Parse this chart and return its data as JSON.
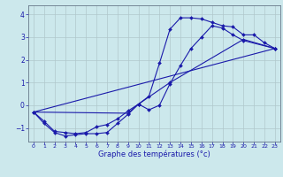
{
  "xlabel": "Graphe des températures (°c)",
  "bg_color": "#cce8ec",
  "line_color": "#1a1aaa",
  "grid_color": "#b0c8cc",
  "xlim": [
    -0.5,
    23.5
  ],
  "ylim": [
    -1.6,
    4.4
  ],
  "yticks": [
    -1,
    0,
    1,
    2,
    3,
    4
  ],
  "xticks": [
    0,
    1,
    2,
    3,
    4,
    5,
    6,
    7,
    8,
    9,
    10,
    11,
    12,
    13,
    14,
    15,
    16,
    17,
    18,
    19,
    20,
    21,
    22,
    23
  ],
  "curve1_x": [
    0,
    1,
    2,
    3,
    4,
    5,
    6,
    7,
    8,
    9,
    10,
    11,
    12,
    13,
    14,
    15,
    16,
    17,
    18,
    19,
    20,
    21,
    22,
    23
  ],
  "curve1_y": [
    -0.3,
    -0.8,
    -1.2,
    -1.35,
    -1.3,
    -1.25,
    -1.25,
    -1.2,
    -0.8,
    -0.4,
    0.05,
    0.4,
    1.85,
    3.35,
    3.85,
    3.85,
    3.8,
    3.65,
    3.5,
    3.45,
    3.1,
    3.1,
    2.75,
    2.5
  ],
  "curve2_x": [
    0,
    1,
    2,
    3,
    4,
    5,
    6,
    7,
    8,
    9,
    10,
    11,
    12,
    13,
    14,
    15,
    16,
    17,
    18,
    19,
    20,
    23
  ],
  "curve2_y": [
    -0.3,
    -0.7,
    -1.15,
    -1.2,
    -1.25,
    -1.2,
    -0.95,
    -0.85,
    -0.6,
    -0.25,
    0.05,
    -0.2,
    0.0,
    0.95,
    1.75,
    2.5,
    3.0,
    3.5,
    3.4,
    3.1,
    2.85,
    2.5
  ],
  "curve3_x": [
    0,
    23
  ],
  "curve3_y": [
    -0.3,
    2.5
  ],
  "curve4_x": [
    0,
    9,
    10,
    13,
    20,
    23
  ],
  "curve4_y": [
    -0.3,
    -0.35,
    0.05,
    1.0,
    2.9,
    2.5
  ]
}
